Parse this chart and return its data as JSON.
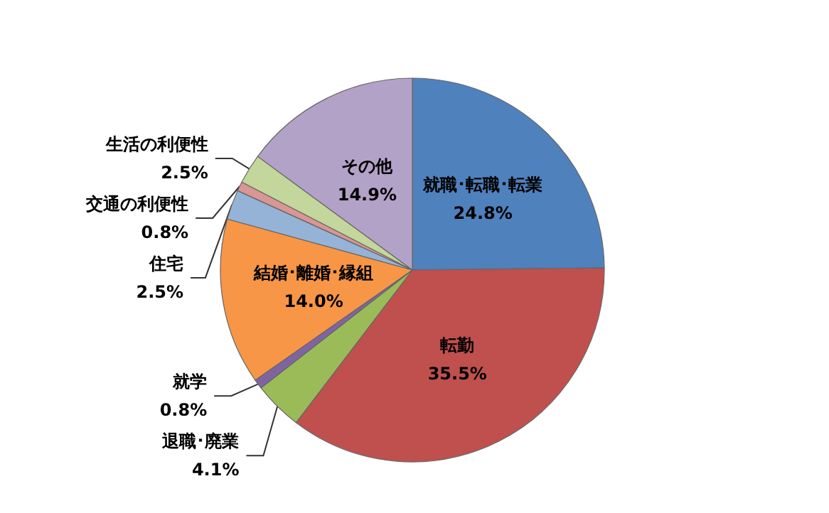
{
  "chart_data": {
    "type": "pie",
    "categories": [
      "就職･転職･転業",
      "転勤",
      "退職･廃業",
      "就学",
      "結婚･離婚･縁組",
      "住宅",
      "交通の利便性",
      "生活の利便性",
      "その他"
    ],
    "values": [
      24.8,
      35.5,
      4.1,
      0.8,
      14.0,
      2.5,
      0.8,
      2.5,
      14.9
    ],
    "value_labels": [
      "24.8%",
      "35.5%",
      "4.1%",
      "0.8%",
      "14.0%",
      "2.5%",
      "0.8%",
      "2.5%",
      "14.9%"
    ],
    "colors": [
      "#4f81bd",
      "#c0504d",
      "#9bbb59",
      "#8064a2",
      "#f79646",
      "#95b3d7",
      "#d99694",
      "#c3d69b",
      "#b3a2c7"
    ],
    "legend": false
  }
}
